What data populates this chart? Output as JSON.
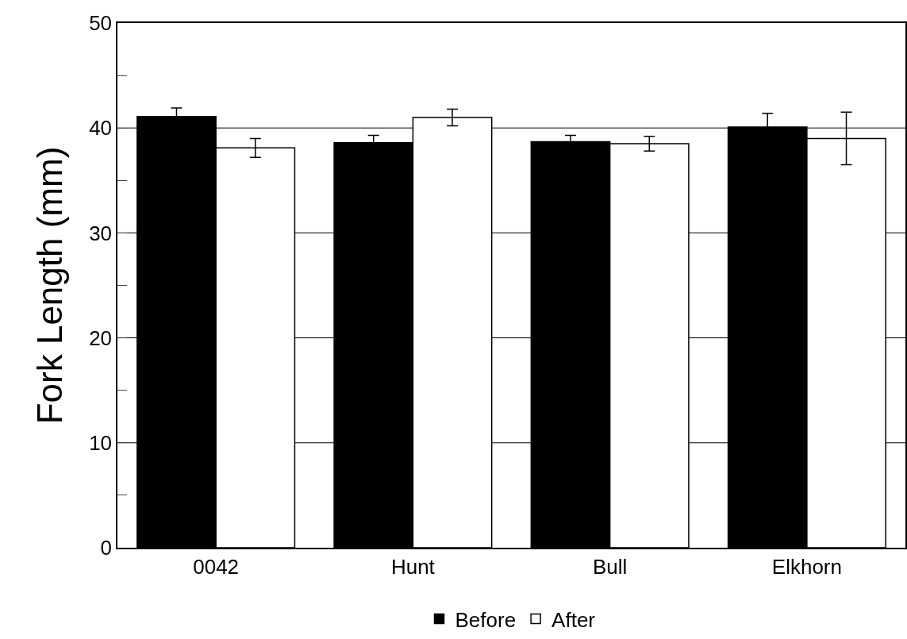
{
  "chart_data": {
    "type": "bar",
    "ylabel": "Fork Length (mm)",
    "categories": [
      "0042",
      "Hunt",
      "Bull",
      "Elkhorn"
    ],
    "series": [
      {
        "name": "Before",
        "color": "#000000",
        "values": [
          41.1,
          38.6,
          38.7,
          40.1
        ],
        "errors": [
          0.8,
          0.7,
          0.6,
          1.3
        ]
      },
      {
        "name": "After",
        "color": "#ffffff",
        "values": [
          38.1,
          41.0,
          38.5,
          39.0
        ],
        "errors": [
          0.9,
          0.8,
          0.7,
          2.5
        ]
      }
    ],
    "ylim": [
      0,
      50
    ],
    "yticks": [
      0,
      {
        "value": 5,
        "label": null
      },
      10,
      {
        "value": 15,
        "label": null
      },
      20,
      {
        "value": 25,
        "label": null
      },
      30,
      {
        "value": 35,
        "label": null
      },
      40,
      {
        "value": 45,
        "label": null
      },
      50
    ],
    "grid": "y",
    "legend": "bottom"
  }
}
